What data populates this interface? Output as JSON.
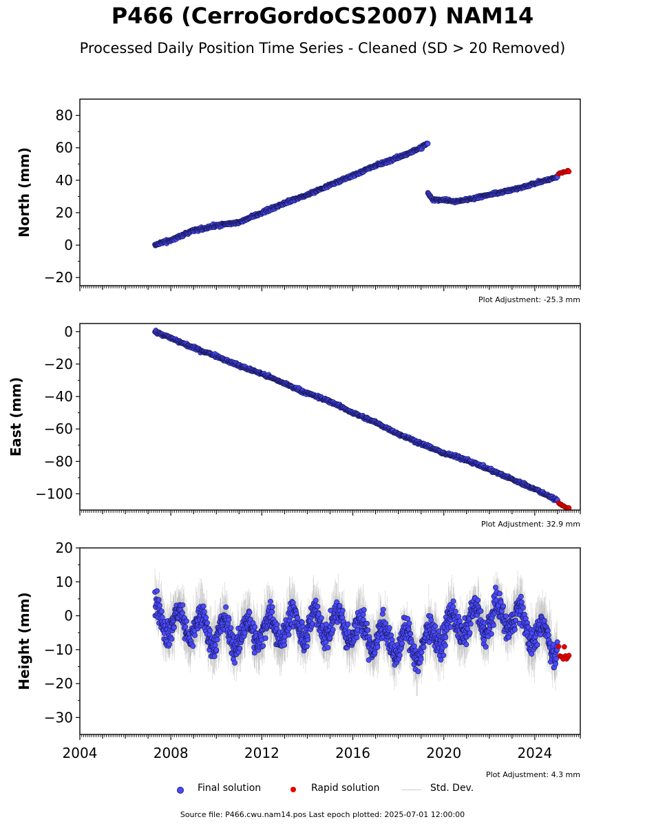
{
  "title": "P466 (CerroGordoCS2007) NAM14",
  "subtitle": "Processed Daily Position Time Series - Cleaned (SD > 20 Removed)",
  "footer": "Source file: P466.cwu.nam14.pos  Last epoch plotted: 2025-07-01 12:00:00",
  "legend": {
    "final": "Final solution",
    "rapid": "Rapid solution",
    "stddev": "Std. Dev."
  },
  "colors": {
    "final": "#4a4aff",
    "rapid": "#e60000",
    "stddev": "#a8a8a8"
  },
  "chart_data": [
    {
      "type": "scatter",
      "ylabel": "North (mm)",
      "adjustment": "Plot Adjustment: -25.3 mm",
      "xlim": [
        2004,
        2026
      ],
      "ylim": [
        -25,
        90
      ],
      "yticks": [
        -20,
        0,
        20,
        40,
        60,
        80
      ],
      "ytick_labels": [
        "−20",
        "0",
        "20",
        "40",
        "60",
        "80"
      ],
      "series": [
        {
          "name": "Final solution",
          "segments": [
            {
              "x": [
                2007.3,
                2008.0,
                2009.0,
                2010.0,
                2011.0,
                2012.0,
                2013.0,
                2014.0,
                2015.0,
                2016.0,
                2017.0,
                2018.0,
                2019.0,
                2019.3
              ],
              "y": [
                0,
                3,
                9,
                12,
                14,
                20,
                26,
                31,
                37,
                43,
                49,
                54,
                60,
                63
              ],
              "noise": 1.2
            },
            {
              "x": [
                2019.3,
                2019.5,
                2020.0,
                2020.5,
                2021.0,
                2022.0,
                2023.0,
                2024.0,
                2025.0
              ],
              "y": [
                32,
                28,
                28,
                27,
                28,
                31,
                34,
                38,
                42
              ],
              "noise": 1.0
            }
          ]
        },
        {
          "name": "Rapid solution",
          "x": [
            2025.05,
            2025.5
          ],
          "y": [
            44,
            46
          ],
          "noise": 1.0
        }
      ]
    },
    {
      "type": "scatter",
      "ylabel": "East (mm)",
      "adjustment": "Plot Adjustment: 32.9 mm",
      "xlim": [
        2004,
        2026
      ],
      "ylim": [
        -110,
        5
      ],
      "yticks": [
        -100,
        -80,
        -60,
        -40,
        -20,
        0
      ],
      "ytick_labels": [
        "−100",
        "−80",
        "−60",
        "−40",
        "−20",
        "0"
      ],
      "series": [
        {
          "name": "Final solution",
          "segments": [
            {
              "x": [
                2007.3,
                2008.0,
                2009.0,
                2010.0,
                2011.0,
                2012.0,
                2013.0,
                2014.0,
                2015.0,
                2016.0,
                2017.0,
                2018.0,
                2019.0,
                2020.0,
                2021.0,
                2022.0,
                2023.0,
                2024.0,
                2025.0
              ],
              "y": [
                0,
                -4,
                -10,
                -15,
                -21,
                -26,
                -32,
                -38,
                -43,
                -50,
                -56,
                -63,
                -69,
                -75,
                -79,
                -85,
                -91,
                -97,
                -104
              ],
              "noise": 1.2
            }
          ]
        },
        {
          "name": "Rapid solution",
          "x": [
            2025.05,
            2025.5
          ],
          "y": [
            -106,
            -109
          ],
          "noise": 0.8
        }
      ]
    },
    {
      "type": "scatter",
      "ylabel": "Height (mm)",
      "adjustment": "Plot Adjustment: 4.3 mm",
      "xlim": [
        2004,
        2026
      ],
      "ylim": [
        -35,
        20
      ],
      "yticks": [
        -30,
        -20,
        -10,
        0,
        10,
        20
      ],
      "ytick_labels": [
        "−30",
        "−20",
        "−10",
        "0",
        "10",
        "20"
      ],
      "xticks": [
        2004,
        2008,
        2012,
        2016,
        2020,
        2024
      ],
      "xtick_labels": [
        "2004",
        "2008",
        "2012",
        "2016",
        "2020",
        "2024"
      ],
      "series": [
        {
          "name": "Final solution",
          "segments": [
            {
              "x": [
                2007.3,
                2008.0,
                2009.0,
                2010.0,
                2011.0,
                2012.0,
                2013.0,
                2014.0,
                2015.0,
                2016.0,
                2017.0,
                2018.0,
                2019.0,
                2020.0,
                2021.0,
                2022.0,
                2023.0,
                2024.0,
                2025.0
              ],
              "y": [
                0,
                -2,
                -3,
                -5,
                -6,
                -4,
                -3,
                -3,
                -2,
                -4,
                -6,
                -8,
                -9,
                -4,
                -2,
                -1,
                0,
                -5,
                -8
              ],
              "noise": 5.0,
              "seasonal": 4.0
            }
          ]
        },
        {
          "name": "Rapid solution",
          "x": [
            2025.05,
            2025.5
          ],
          "y": [
            -11,
            -12
          ],
          "noise": 2.5
        }
      ]
    }
  ]
}
